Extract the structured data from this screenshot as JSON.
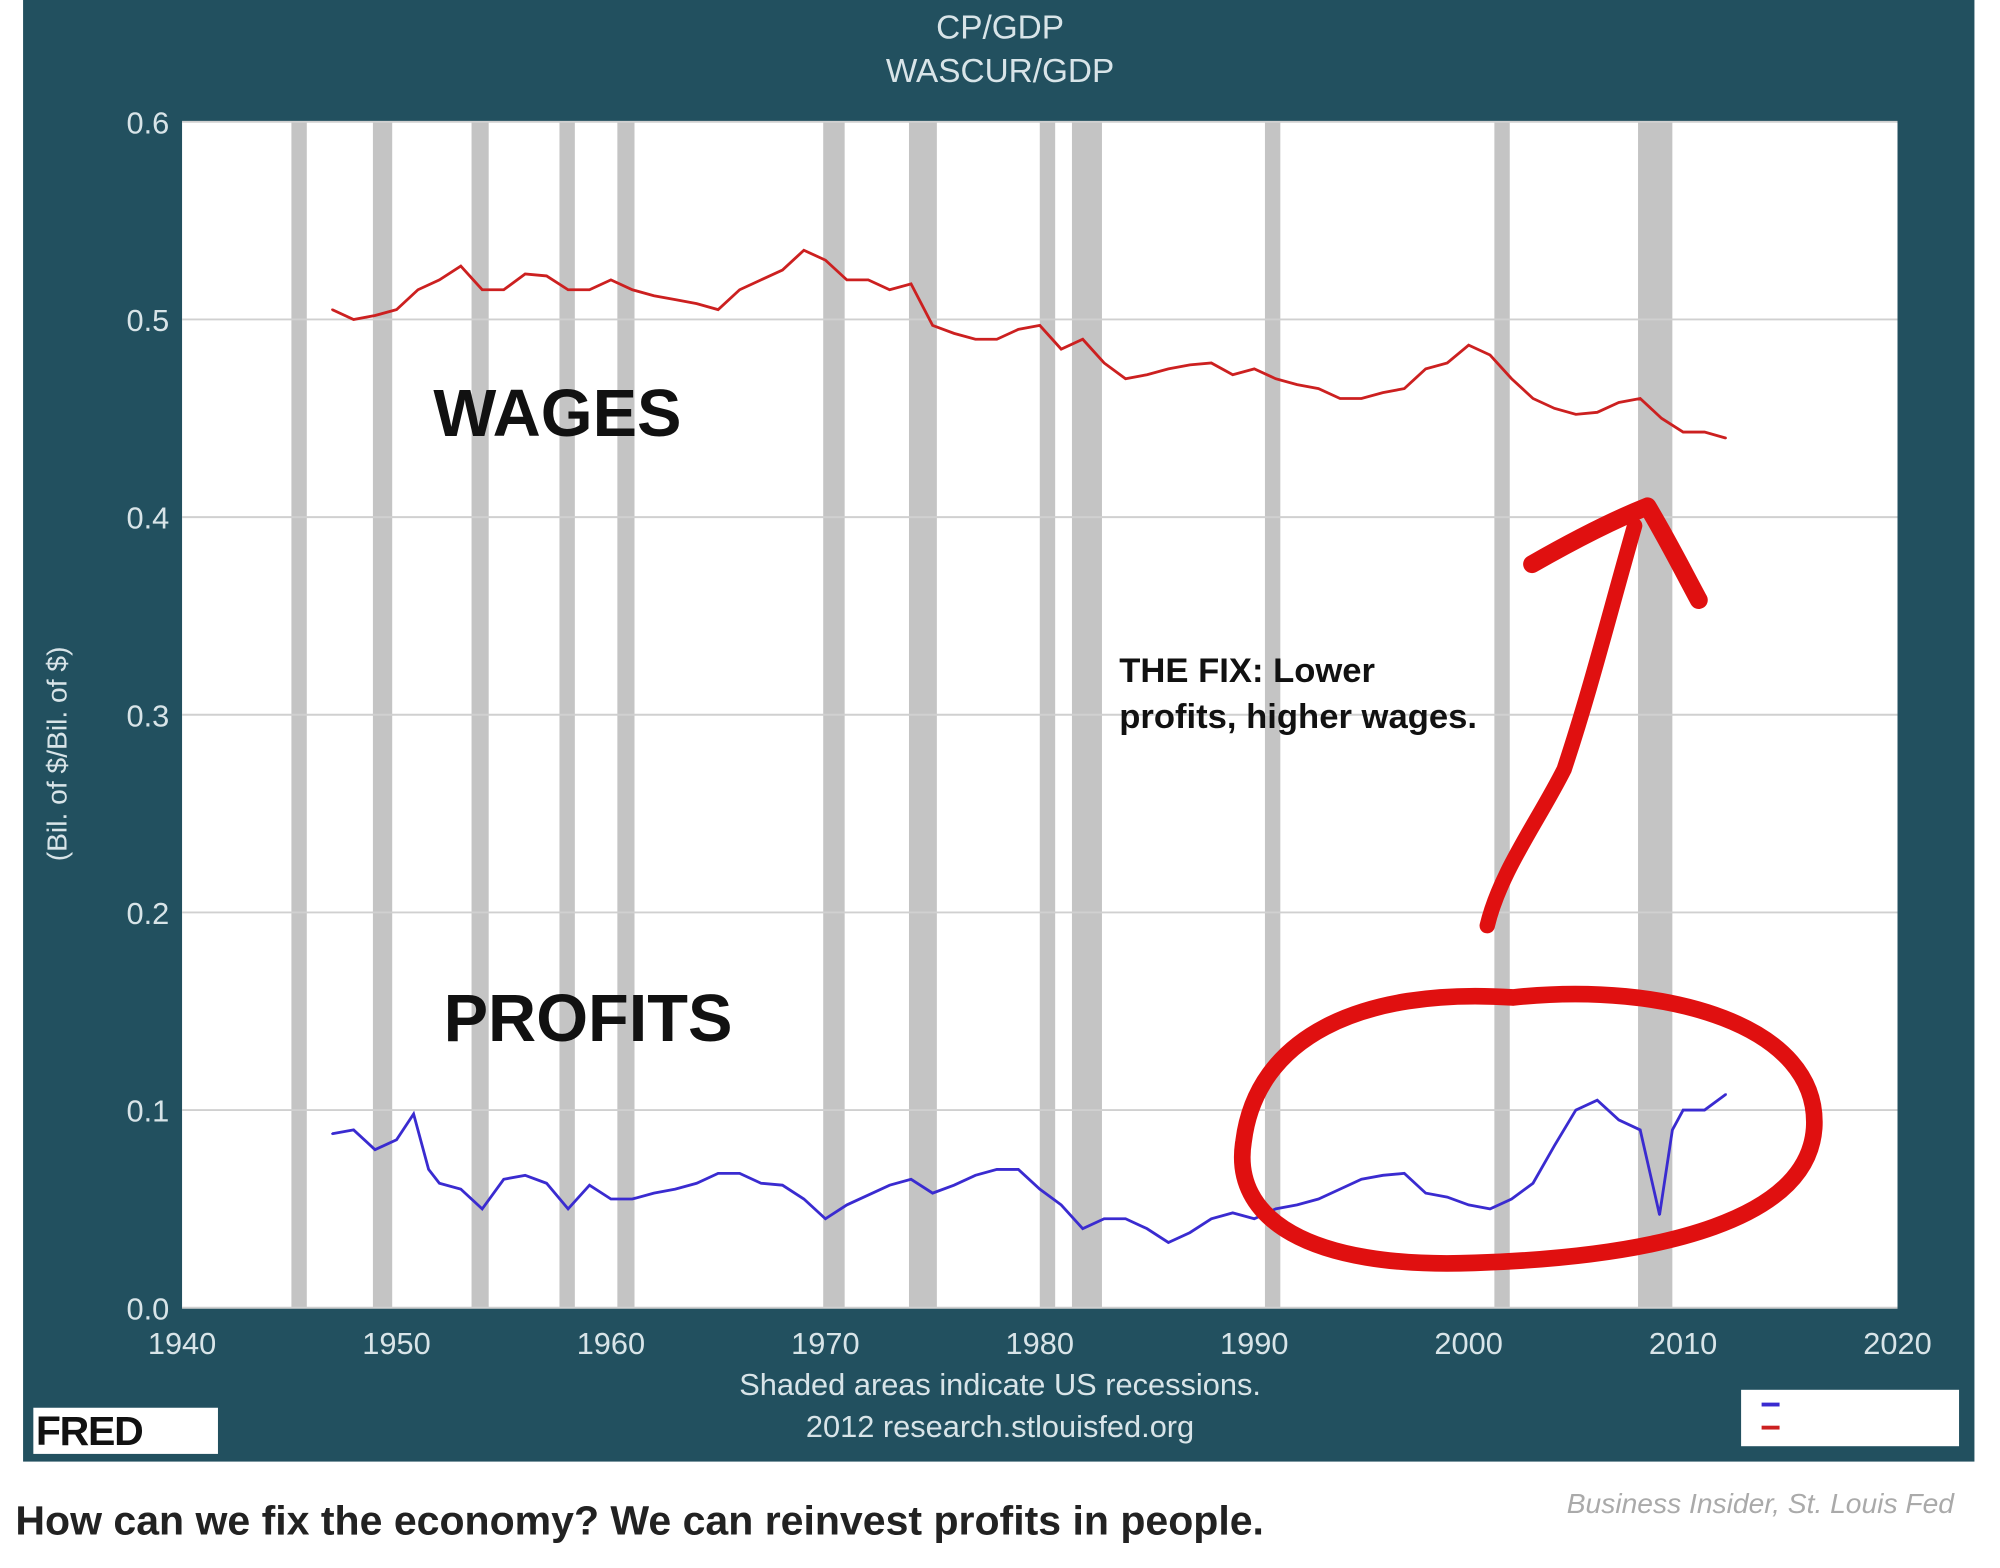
{
  "caption": "How can we fix the economy? We can reinvest profits in people.",
  "credit": "Business Insider, St. Louis Fed",
  "fred_logo": "FRED",
  "chart_data": {
    "type": "line",
    "title_lines": [
      "CP/GDP",
      "WASCUR/GDP"
    ],
    "ylabel": "(Bil. of $/Bil. of $)",
    "xlabel": "",
    "note_lines": [
      "Shaded areas indicate US recessions.",
      "2012 research.stlouisfed.org"
    ],
    "xlim": [
      1940,
      2020
    ],
    "ylim": [
      0,
      0.6
    ],
    "x_ticks": [
      "1940",
      "1950",
      "1960",
      "1970",
      "1980",
      "1990",
      "2000",
      "2010",
      "2020"
    ],
    "y_ticks": [
      "0.0",
      "0.1",
      "0.2",
      "0.3",
      "0.4",
      "0.5",
      "0.6"
    ],
    "grid": true,
    "legend": "bottom-right",
    "recessions": [
      [
        1945.1,
        1945.8
      ],
      [
        1948.9,
        1949.8
      ],
      [
        1953.5,
        1954.3
      ],
      [
        1957.6,
        1958.3
      ],
      [
        1960.3,
        1961.1
      ],
      [
        1969.9,
        1970.9
      ],
      [
        1973.9,
        1975.2
      ],
      [
        1980.0,
        1980.5
      ],
      [
        1981.5,
        1982.9
      ],
      [
        1990.5,
        1991.2
      ],
      [
        2001.2,
        2001.9
      ],
      [
        2007.9,
        2009.5
      ]
    ],
    "series": [
      {
        "id": "wages",
        "color": "#cc2020",
        "x": [
          1947,
          1948,
          1949,
          1950,
          1951,
          1952,
          1953,
          1954,
          1955,
          1956,
          1957,
          1958,
          1959,
          1960,
          1961,
          1962,
          1963,
          1964,
          1965,
          1966,
          1967,
          1968,
          1969,
          1970,
          1971,
          1972,
          1973,
          1974,
          1975,
          1976,
          1977,
          1978,
          1979,
          1980,
          1981,
          1982,
          1983,
          1984,
          1985,
          1986,
          1987,
          1988,
          1989,
          1990,
          1991,
          1992,
          1993,
          1994,
          1995,
          1996,
          1997,
          1998,
          1999,
          2000,
          2001,
          2002,
          2003,
          2004,
          2005,
          2006,
          2007,
          2008,
          2009,
          2010,
          2011,
          2012
        ],
        "y": [
          0.505,
          0.5,
          0.502,
          0.505,
          0.515,
          0.52,
          0.527,
          0.515,
          0.515,
          0.523,
          0.522,
          0.515,
          0.515,
          0.52,
          0.515,
          0.512,
          0.51,
          0.508,
          0.505,
          0.515,
          0.52,
          0.525,
          0.535,
          0.53,
          0.52,
          0.52,
          0.515,
          0.518,
          0.497,
          0.493,
          0.49,
          0.49,
          0.495,
          0.497,
          0.485,
          0.49,
          0.478,
          0.47,
          0.472,
          0.475,
          0.477,
          0.478,
          0.472,
          0.475,
          0.47,
          0.467,
          0.465,
          0.46,
          0.46,
          0.463,
          0.465,
          0.475,
          0.478,
          0.487,
          0.482,
          0.47,
          0.46,
          0.455,
          0.452,
          0.453,
          0.458,
          0.46,
          0.45,
          0.443,
          0.443,
          0.44
        ]
      },
      {
        "id": "profits",
        "color": "#3a2bd0",
        "x": [
          1947,
          1948,
          1949,
          1950,
          1950.8,
          1951.5,
          1952,
          1953,
          1954,
          1955,
          1956,
          1957,
          1958,
          1959,
          1960,
          1961,
          1962,
          1963,
          1964,
          1965,
          1966,
          1967,
          1968,
          1969,
          1970,
          1971,
          1972,
          1973,
          1974,
          1975,
          1976,
          1977,
          1978,
          1979,
          1980,
          1981,
          1982,
          1983,
          1984,
          1985,
          1986,
          1987,
          1988,
          1989,
          1990,
          1991,
          1992,
          1993,
          1994,
          1995,
          1996,
          1997,
          1998,
          1999,
          2000,
          2001,
          2002,
          2003,
          2004,
          2005,
          2006,
          2007,
          2008,
          2008.9,
          2009.5,
          2010,
          2011,
          2012
        ],
        "y": [
          0.088,
          0.09,
          0.08,
          0.085,
          0.098,
          0.07,
          0.063,
          0.06,
          0.05,
          0.065,
          0.067,
          0.063,
          0.05,
          0.062,
          0.055,
          0.055,
          0.058,
          0.06,
          0.063,
          0.068,
          0.068,
          0.063,
          0.062,
          0.055,
          0.045,
          0.052,
          0.057,
          0.062,
          0.065,
          0.058,
          0.062,
          0.067,
          0.07,
          0.07,
          0.06,
          0.052,
          0.04,
          0.045,
          0.045,
          0.04,
          0.033,
          0.038,
          0.045,
          0.048,
          0.045,
          0.05,
          0.052,
          0.055,
          0.06,
          0.065,
          0.067,
          0.068,
          0.058,
          0.056,
          0.052,
          0.05,
          0.055,
          0.063,
          0.082,
          0.1,
          0.105,
          0.095,
          0.09,
          0.047,
          0.09,
          0.1,
          0.1,
          0.108
        ]
      }
    ],
    "annotations": {
      "wages": "WAGES",
      "profits": "PROFITS",
      "fix_line1": "THE FIX: Lower",
      "fix_line2": "profits, higher wages."
    }
  }
}
